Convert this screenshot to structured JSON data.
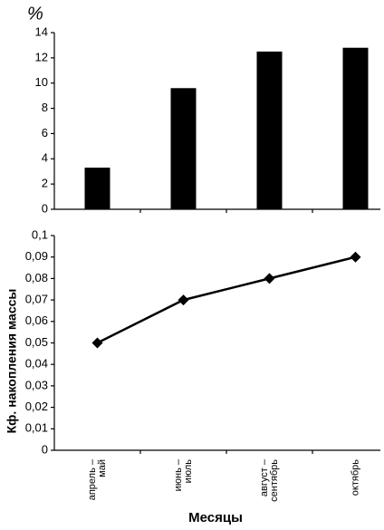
{
  "chart_data": [
    {
      "type": "bar",
      "y_label": "%",
      "categories": [
        null,
        null,
        null,
        null
      ],
      "values": [
        3.3,
        9.6,
        12.5,
        12.8
      ],
      "color": "#000000",
      "ylim": [
        0,
        14
      ],
      "yticks": [
        0,
        2,
        4,
        6,
        8,
        10,
        12,
        14
      ]
    },
    {
      "type": "line",
      "y_label": "Кф. накопления массы",
      "x_label": "Месяцы",
      "categories": [
        "апрель – май",
        "июнь – июль",
        "август – сентябрь",
        "октябрь"
      ],
      "values": [
        0.05,
        0.07,
        0.08,
        0.09
      ],
      "color": "#000000",
      "ylim": [
        0,
        0.1
      ],
      "yticks": [
        0,
        {
          "value": 0.01,
          "label": "0,01"
        },
        {
          "value": 0.02,
          "label": "0,02"
        },
        {
          "value": 0.03,
          "label": "0,03"
        },
        {
          "value": 0.04,
          "label": "0,04"
        },
        {
          "value": 0.05,
          "label": "0,05"
        },
        {
          "value": 0.06,
          "label": "0,06"
        },
        {
          "value": 0.07,
          "label": "0,07"
        },
        {
          "value": 0.08,
          "label": "0,08"
        },
        {
          "value": 0.09,
          "label": "0,09"
        },
        {
          "value": 0.1,
          "label": "0,1"
        }
      ]
    }
  ]
}
